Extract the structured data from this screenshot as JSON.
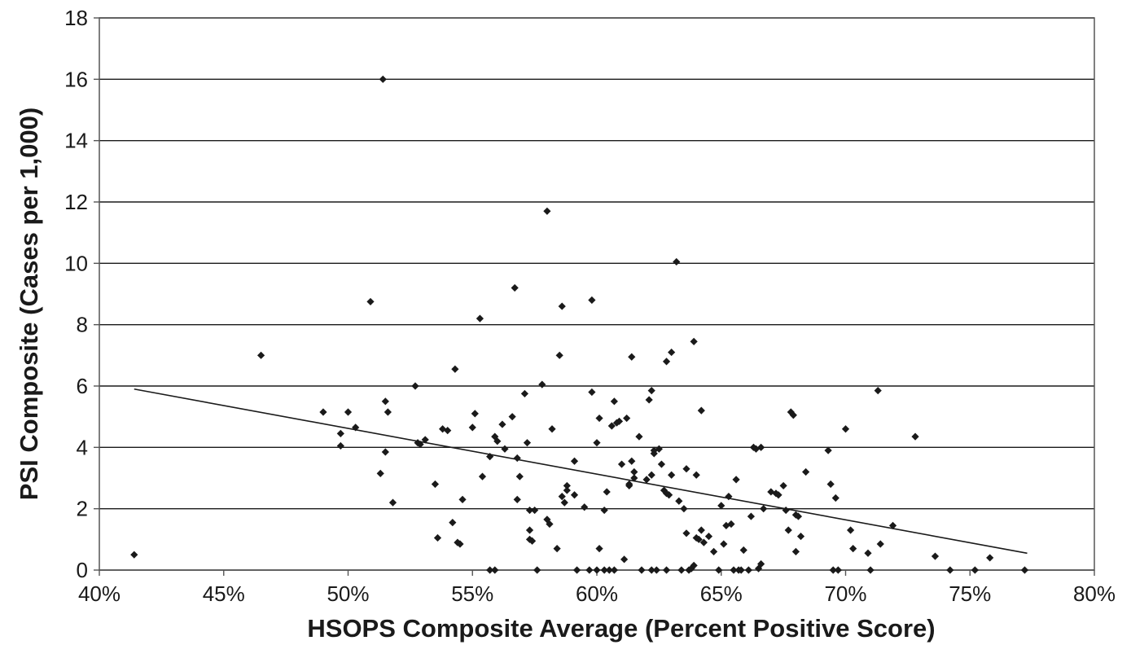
{
  "chart_data": {
    "type": "scatter",
    "xlabel": "HSOPS Composite Average (Percent Positive Score)",
    "ylabel": "PSI Composite (Cases per 1,000)",
    "xlim": [
      0.4,
      0.8
    ],
    "ylim": [
      0,
      18
    ],
    "x_ticks": [
      0.4,
      0.45,
      0.5,
      0.55,
      0.6,
      0.65,
      0.7,
      0.75,
      0.8
    ],
    "x_tick_labels": [
      "40%",
      "45%",
      "50%",
      "55%",
      "60%",
      "65%",
      "70%",
      "75%",
      "80%"
    ],
    "y_ticks": [
      0,
      2,
      4,
      6,
      8,
      10,
      12,
      14,
      16,
      18
    ],
    "y_tick_labels": [
      "0",
      "2",
      "4",
      "6",
      "8",
      "10",
      "12",
      "14",
      "16",
      "18"
    ],
    "grid": "horizontal",
    "marker_color": "#1a1a1a",
    "trendline": {
      "x": [
        0.414,
        0.773
      ],
      "y": [
        5.9,
        0.55
      ]
    },
    "points": [
      [
        0.414,
        0.5
      ],
      [
        0.465,
        7.0
      ],
      [
        0.49,
        5.15
      ],
      [
        0.497,
        4.45
      ],
      [
        0.497,
        4.05
      ],
      [
        0.5,
        5.15
      ],
      [
        0.503,
        4.65
      ],
      [
        0.509,
        8.75
      ],
      [
        0.513,
        3.15
      ],
      [
        0.514,
        16.0
      ],
      [
        0.515,
        3.85
      ],
      [
        0.515,
        5.5
      ],
      [
        0.516,
        5.15
      ],
      [
        0.518,
        2.2
      ],
      [
        0.527,
        6.0
      ],
      [
        0.528,
        4.15
      ],
      [
        0.529,
        4.1
      ],
      [
        0.531,
        4.25
      ],
      [
        0.535,
        2.8
      ],
      [
        0.536,
        1.05
      ],
      [
        0.538,
        4.6
      ],
      [
        0.54,
        4.55
      ],
      [
        0.542,
        1.55
      ],
      [
        0.543,
        6.55
      ],
      [
        0.544,
        0.9
      ],
      [
        0.545,
        0.85
      ],
      [
        0.546,
        2.3
      ],
      [
        0.55,
        4.65
      ],
      [
        0.551,
        5.1
      ],
      [
        0.553,
        8.2
      ],
      [
        0.554,
        3.05
      ],
      [
        0.557,
        0.0
      ],
      [
        0.557,
        3.7
      ],
      [
        0.559,
        0.0
      ],
      [
        0.559,
        4.35
      ],
      [
        0.56,
        4.2
      ],
      [
        0.562,
        4.75
      ],
      [
        0.563,
        3.95
      ],
      [
        0.566,
        5.0
      ],
      [
        0.567,
        9.2
      ],
      [
        0.568,
        3.65
      ],
      [
        0.568,
        2.3
      ],
      [
        0.569,
        3.05
      ],
      [
        0.571,
        5.75
      ],
      [
        0.572,
        4.15
      ],
      [
        0.573,
        1.95
      ],
      [
        0.573,
        1.3
      ],
      [
        0.573,
        1.0
      ],
      [
        0.574,
        0.95
      ],
      [
        0.575,
        1.95
      ],
      [
        0.576,
        0.0
      ],
      [
        0.578,
        6.05
      ],
      [
        0.58,
        11.7
      ],
      [
        0.58,
        1.65
      ],
      [
        0.581,
        1.5
      ],
      [
        0.582,
        4.6
      ],
      [
        0.584,
        0.7
      ],
      [
        0.585,
        7.0
      ],
      [
        0.586,
        8.6
      ],
      [
        0.586,
        2.4
      ],
      [
        0.587,
        2.2
      ],
      [
        0.588,
        2.75
      ],
      [
        0.588,
        2.6
      ],
      [
        0.591,
        3.55
      ],
      [
        0.591,
        2.45
      ],
      [
        0.592,
        0.0
      ],
      [
        0.595,
        2.05
      ],
      [
        0.597,
        0.0
      ],
      [
        0.598,
        8.8
      ],
      [
        0.598,
        5.8
      ],
      [
        0.6,
        0.0
      ],
      [
        0.6,
        4.15
      ],
      [
        0.601,
        4.95
      ],
      [
        0.601,
        0.7
      ],
      [
        0.603,
        0.0
      ],
      [
        0.603,
        1.95
      ],
      [
        0.604,
        2.55
      ],
      [
        0.605,
        0.0
      ],
      [
        0.606,
        4.7
      ],
      [
        0.607,
        5.5
      ],
      [
        0.607,
        0.0
      ],
      [
        0.608,
        4.8
      ],
      [
        0.609,
        4.85
      ],
      [
        0.61,
        3.45
      ],
      [
        0.611,
        0.35
      ],
      [
        0.612,
        4.95
      ],
      [
        0.613,
        2.75
      ],
      [
        0.613,
        2.8
      ],
      [
        0.614,
        6.95
      ],
      [
        0.614,
        3.55
      ],
      [
        0.615,
        3.2
      ],
      [
        0.615,
        3.0
      ],
      [
        0.617,
        4.35
      ],
      [
        0.618,
        0.0
      ],
      [
        0.62,
        2.95
      ],
      [
        0.621,
        5.55
      ],
      [
        0.622,
        0.0
      ],
      [
        0.622,
        3.1
      ],
      [
        0.622,
        5.85
      ],
      [
        0.623,
        3.9
      ],
      [
        0.623,
        3.8
      ],
      [
        0.624,
        0.0
      ],
      [
        0.625,
        3.95
      ],
      [
        0.626,
        3.45
      ],
      [
        0.627,
        2.6
      ],
      [
        0.628,
        2.5
      ],
      [
        0.628,
        6.8
      ],
      [
        0.628,
        0.0
      ],
      [
        0.629,
        2.45
      ],
      [
        0.63,
        7.1
      ],
      [
        0.63,
        3.1
      ],
      [
        0.632,
        10.05
      ],
      [
        0.633,
        2.25
      ],
      [
        0.634,
        0.0
      ],
      [
        0.635,
        2.0
      ],
      [
        0.636,
        3.3
      ],
      [
        0.636,
        1.2
      ],
      [
        0.637,
        0.0
      ],
      [
        0.638,
        0.05
      ],
      [
        0.639,
        0.15
      ],
      [
        0.639,
        7.45
      ],
      [
        0.64,
        1.05
      ],
      [
        0.64,
        3.1
      ],
      [
        0.641,
        1.0
      ],
      [
        0.642,
        1.3
      ],
      [
        0.642,
        5.2
      ],
      [
        0.643,
        0.9
      ],
      [
        0.645,
        1.1
      ],
      [
        0.647,
        0.6
      ],
      [
        0.649,
        0.0
      ],
      [
        0.65,
        2.1
      ],
      [
        0.651,
        0.85
      ],
      [
        0.652,
        1.45
      ],
      [
        0.653,
        2.4
      ],
      [
        0.654,
        1.5
      ],
      [
        0.655,
        0.0
      ],
      [
        0.656,
        2.95
      ],
      [
        0.657,
        0.0
      ],
      [
        0.658,
        0.0
      ],
      [
        0.659,
        0.65
      ],
      [
        0.661,
        0.0
      ],
      [
        0.662,
        1.75
      ],
      [
        0.663,
        4.0
      ],
      [
        0.664,
        3.95
      ],
      [
        0.665,
        0.05
      ],
      [
        0.666,
        4.0
      ],
      [
        0.666,
        0.2
      ],
      [
        0.667,
        2.0
      ],
      [
        0.67,
        2.55
      ],
      [
        0.672,
        2.5
      ],
      [
        0.673,
        2.45
      ],
      [
        0.675,
        2.75
      ],
      [
        0.676,
        1.95
      ],
      [
        0.677,
        1.3
      ],
      [
        0.678,
        5.15
      ],
      [
        0.679,
        5.05
      ],
      [
        0.68,
        1.8
      ],
      [
        0.68,
        0.6
      ],
      [
        0.681,
        1.75
      ],
      [
        0.682,
        1.1
      ],
      [
        0.684,
        3.2
      ],
      [
        0.693,
        3.9
      ],
      [
        0.694,
        2.8
      ],
      [
        0.695,
        0.0
      ],
      [
        0.696,
        2.35
      ],
      [
        0.697,
        0.0
      ],
      [
        0.7,
        4.6
      ],
      [
        0.702,
        1.3
      ],
      [
        0.703,
        0.7
      ],
      [
        0.709,
        0.55
      ],
      [
        0.71,
        0.0
      ],
      [
        0.713,
        5.85
      ],
      [
        0.714,
        0.85
      ],
      [
        0.719,
        1.45
      ],
      [
        0.728,
        4.35
      ],
      [
        0.736,
        0.45
      ],
      [
        0.742,
        0.0
      ],
      [
        0.752,
        0.0
      ],
      [
        0.758,
        0.4
      ],
      [
        0.772,
        0.0
      ]
    ]
  }
}
